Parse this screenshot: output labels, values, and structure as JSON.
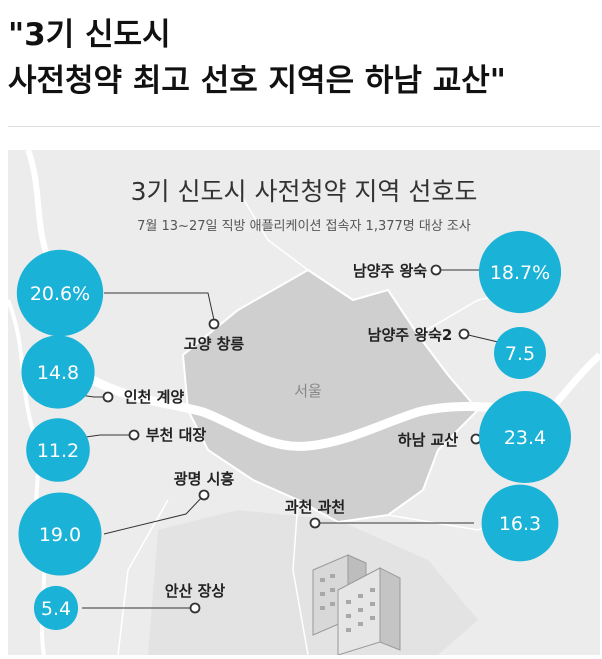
{
  "headline": {
    "line1": "\"3기 신도시",
    "line2": "사전청약 최고 선호 지역은 하남 교산\""
  },
  "chart_data": {
    "type": "bubble",
    "title": "3기 신도시 사전청약 지역 선호도",
    "subtitle": "7월 13~27일 직방 애플리케이션 접속자 1,377명 대상 조사",
    "unit": "%",
    "map_label": "서울",
    "series": [
      {
        "name": "남양주 왕숙",
        "value": 18.7,
        "display": "18.7%"
      },
      {
        "name": "고양 창릉",
        "value": 20.6,
        "display": "20.6%"
      },
      {
        "name": "남양주 왕숙2",
        "value": 7.5,
        "display": "7.5"
      },
      {
        "name": "인천 계양",
        "value": 14.8,
        "display": "14.8"
      },
      {
        "name": "하남 교산",
        "value": 23.4,
        "display": "23.4"
      },
      {
        "name": "부천 대장",
        "value": 11.2,
        "display": "11.2"
      },
      {
        "name": "광명 시흥",
        "value": 19.0,
        "display": "19.0"
      },
      {
        "name": "과천 과천",
        "value": 16.3,
        "display": "16.3"
      },
      {
        "name": "안산 장상",
        "value": 5.4,
        "display": "5.4"
      }
    ],
    "colors": {
      "bubble": "#1bb2d8",
      "bubble_text": "#ffffff",
      "map_land": "#ececec",
      "seoul": "#cfcfcf",
      "river": "#ffffff",
      "leader": "#333333"
    }
  }
}
